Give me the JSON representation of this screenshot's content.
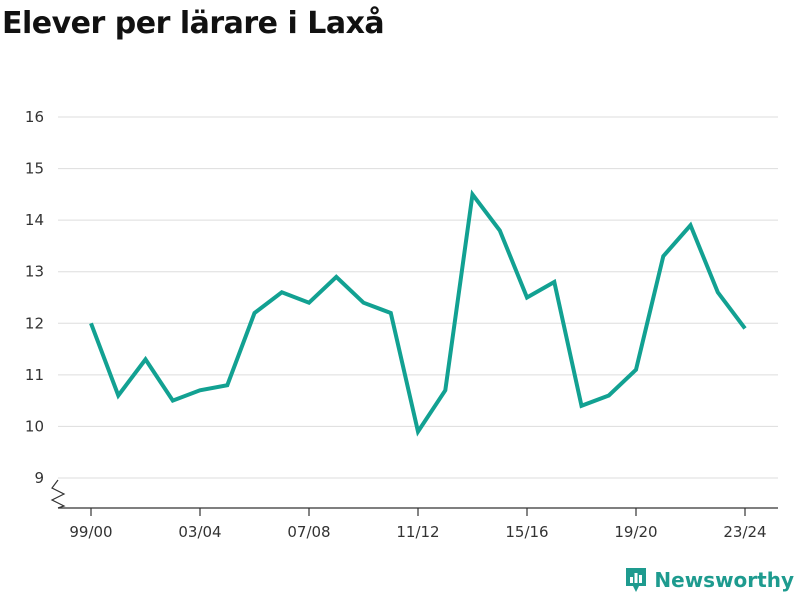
{
  "chart_data": {
    "type": "line",
    "title": "Elever per lärare i Laxå",
    "xlabel": "",
    "ylabel": "",
    "x_tick_labels": [
      "99/00",
      "03/04",
      "07/08",
      "11/12",
      "15/16",
      "19/20",
      "23/24"
    ],
    "y_ticks": [
      9,
      10,
      11,
      12,
      13,
      14,
      15,
      16
    ],
    "ylim": [
      8.4,
      16.2
    ],
    "y_axis_break": true,
    "grid": true,
    "line_color": "#12a192",
    "series": [
      {
        "x": [
          "99/00",
          "00/01",
          "01/02",
          "02/03",
          "03/04",
          "04/05",
          "05/06",
          "06/07",
          "07/08",
          "08/09",
          "09/10",
          "10/11",
          "11/12",
          "12/13",
          "13/14",
          "14/15",
          "15/16",
          "16/17",
          "17/18",
          "18/19",
          "19/20",
          "20/21",
          "21/22",
          "22/23",
          "23/24"
        ],
        "values": [
          12.0,
          10.6,
          11.3,
          10.5,
          10.7,
          10.8,
          12.2,
          12.6,
          12.4,
          12.9,
          12.4,
          12.2,
          9.9,
          10.7,
          14.5,
          13.8,
          12.5,
          12.8,
          10.4,
          10.6,
          11.1,
          13.3,
          13.9,
          12.6,
          11.9
        ]
      }
    ]
  },
  "brand": {
    "name": "Newsworthy",
    "color": "#1e9b8f",
    "icon": "bar-chart-pin-icon"
  }
}
